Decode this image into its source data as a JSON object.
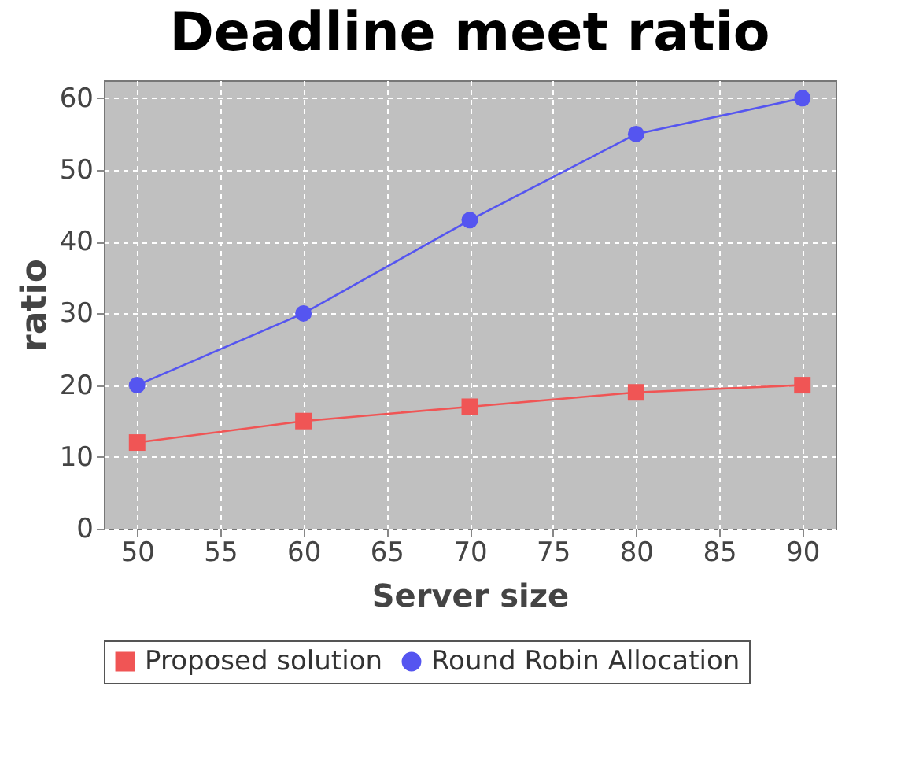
{
  "chart_data": {
    "type": "line",
    "title": "Deadline meet ratio",
    "xlabel": "Server size",
    "ylabel": "ratio",
    "x": [
      50,
      60,
      70,
      80,
      90
    ],
    "series": [
      {
        "name": "Proposed solution",
        "color": "#f05555",
        "marker": "square",
        "values": [
          12,
          15,
          17,
          19,
          20
        ]
      },
      {
        "name": "Round Robin Allocation",
        "color": "#5555f0",
        "marker": "circle",
        "values": [
          20,
          30,
          43,
          55,
          60
        ]
      }
    ],
    "xlim": [
      48,
      92
    ],
    "xticks": [
      50,
      55,
      60,
      65,
      70,
      75,
      80,
      85,
      90
    ],
    "ylim": [
      0,
      62.5
    ],
    "yticks": [
      0,
      10,
      20,
      30,
      40,
      50,
      60
    ],
    "grid": true,
    "legend": "bottom",
    "line_style": "solid"
  }
}
